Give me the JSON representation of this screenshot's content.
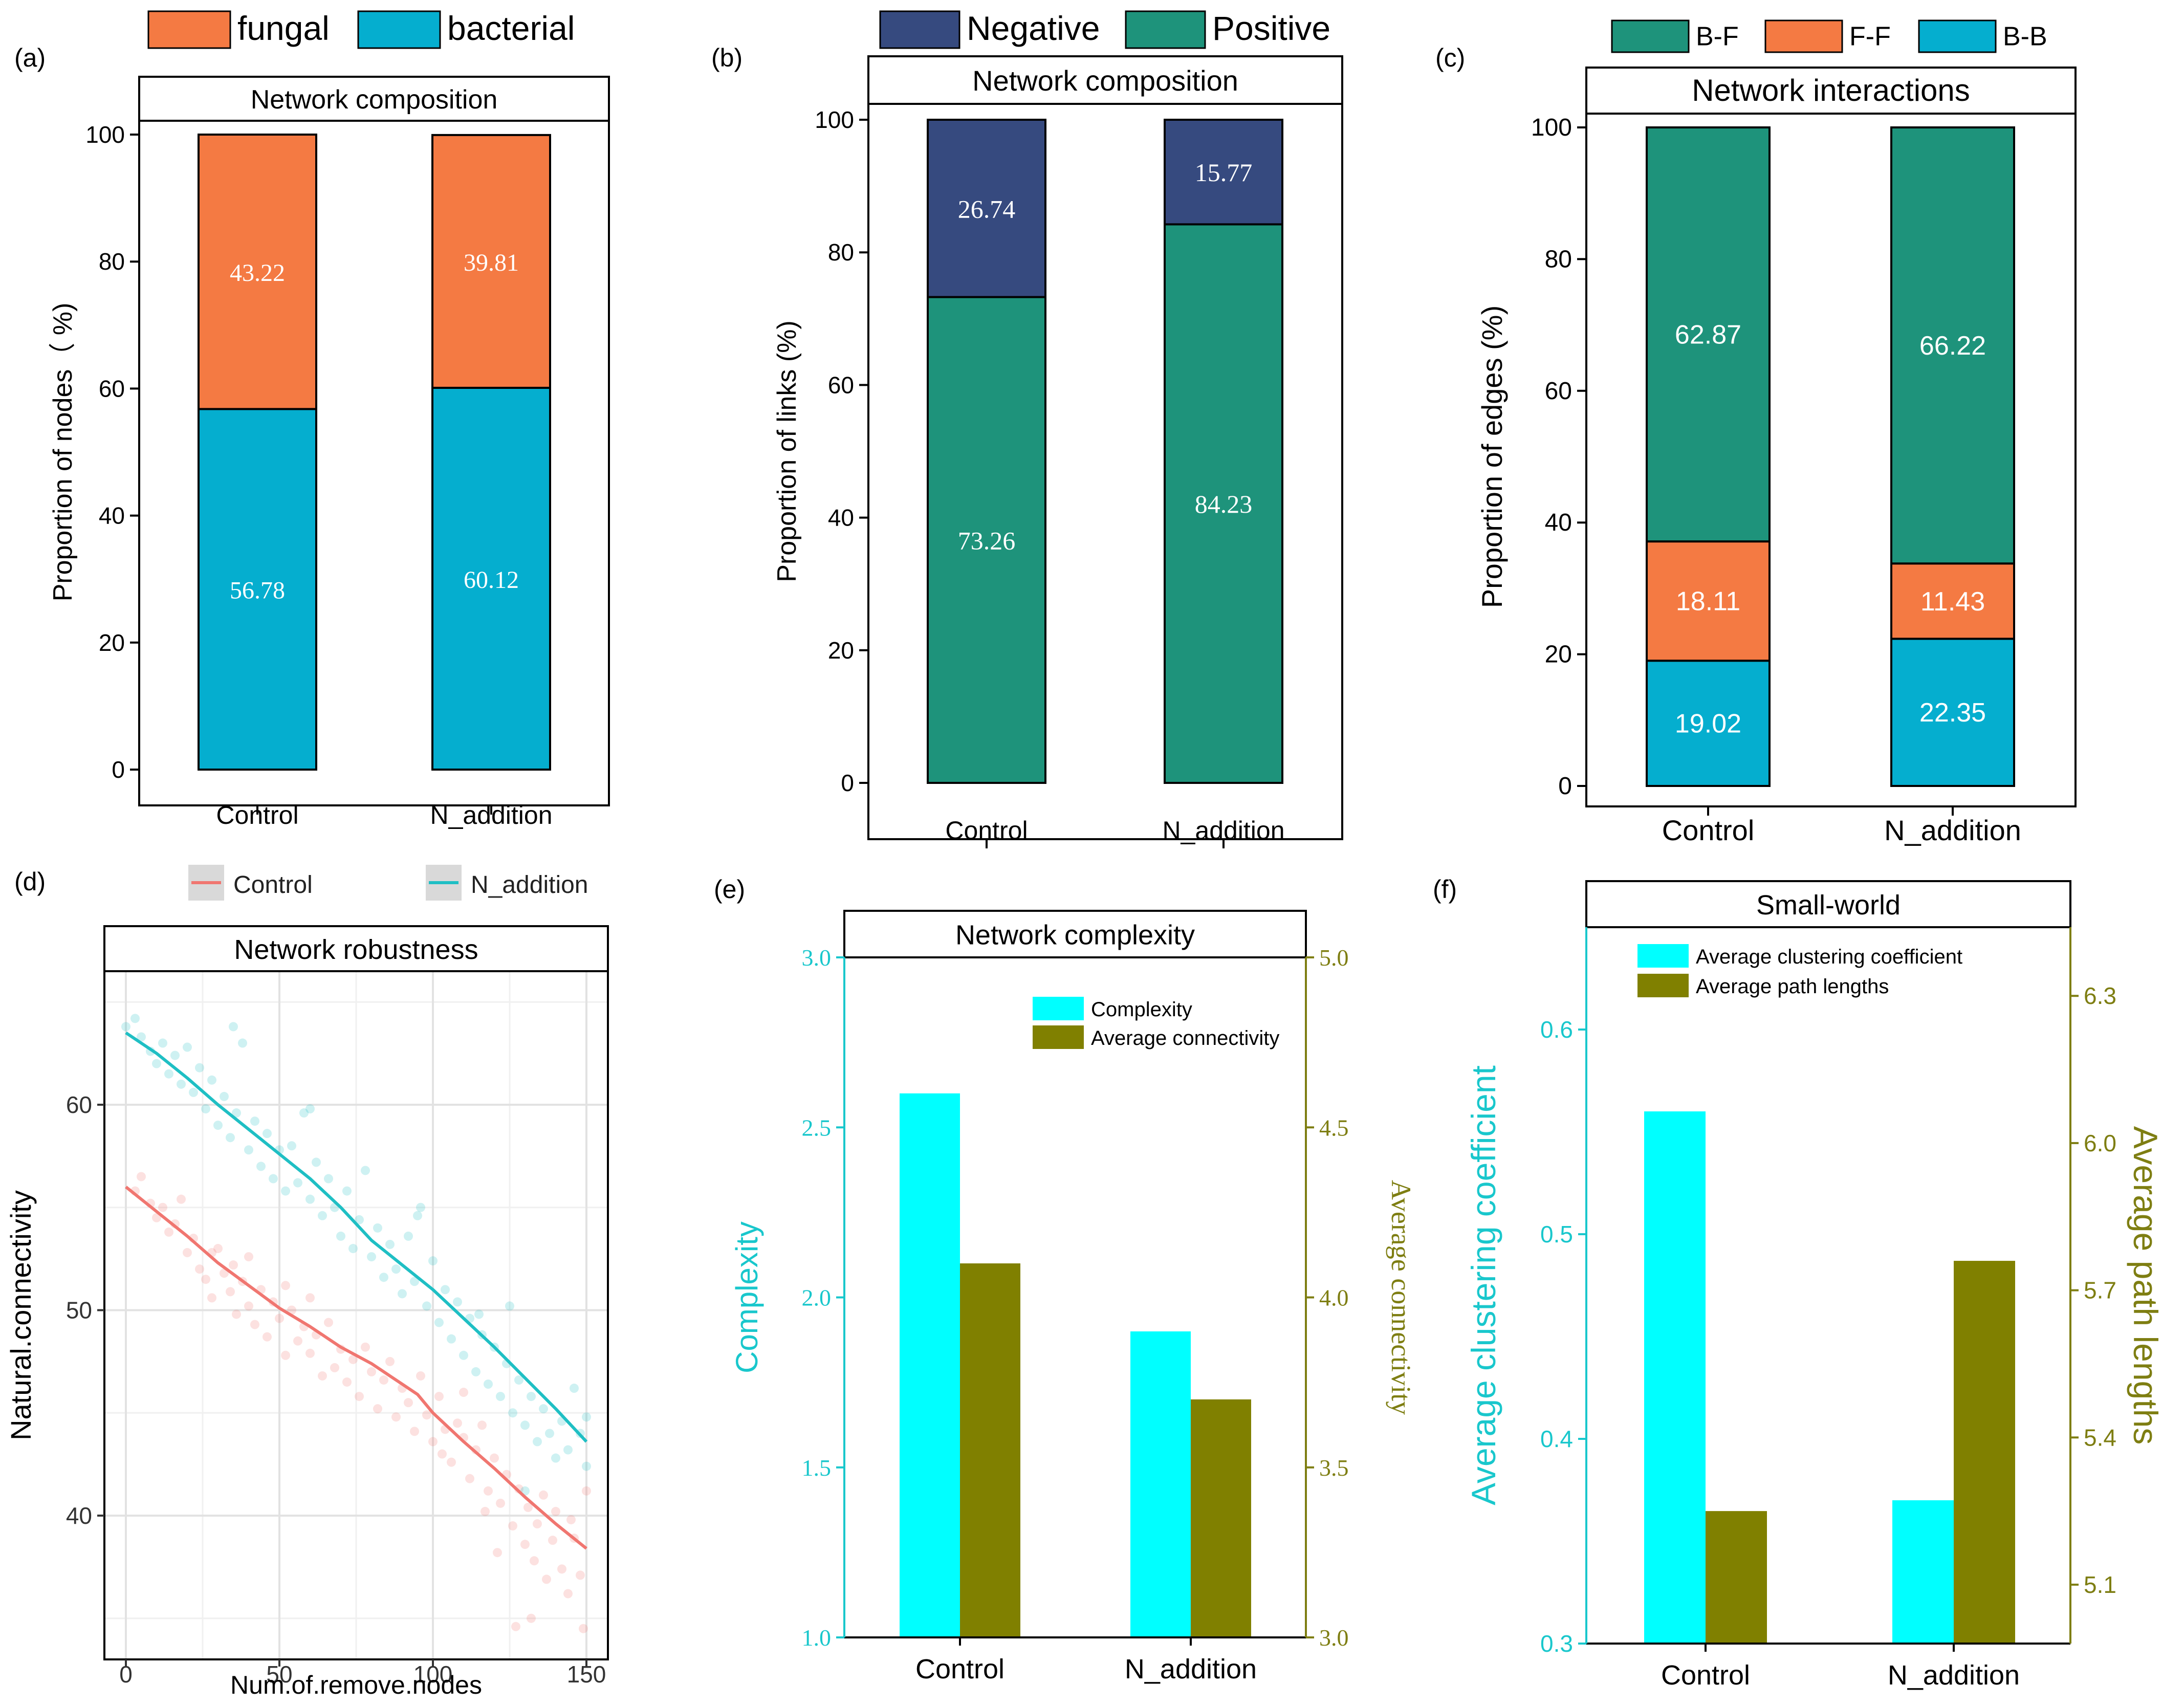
{
  "colors": {
    "fungal": "#F47A43",
    "bacterial": "#05AECF",
    "negative": "#364A7F",
    "positive": "#1E937B",
    "bf": "#1E937B",
    "ff": "#F47A43",
    "bb": "#05AECF",
    "control_line": "#F07670",
    "naddition_line": "#1FBFC4",
    "cyan": "#00FFFF",
    "olive": "#808000",
    "cyan_axis": "#19C7CC",
    "olive_axis": "#7E7E12"
  },
  "chart_data": [
    {
      "panel": "a",
      "panel_label": "(a)",
      "type": "bar",
      "title": "Network composition",
      "xlabel": "",
      "ylabel": "Proportion of nodes（ %)",
      "categories": [
        "Control",
        "N_addition"
      ],
      "ylim": [
        0,
        100
      ],
      "yticks": [
        "0",
        "20",
        "40",
        "60",
        "80",
        "100"
      ],
      "series": [
        {
          "name": "bacterial",
          "values": [
            56.78,
            60.12
          ],
          "labels": [
            "56.78",
            "60.12"
          ]
        },
        {
          "name": "fungal",
          "values": [
            43.22,
            39.81
          ],
          "labels": [
            "43.22",
            "39.81"
          ]
        }
      ],
      "legend": [
        {
          "key": "fungal",
          "label": "fungal"
        },
        {
          "key": "bacterial",
          "label": "bacterial"
        }
      ]
    },
    {
      "panel": "b",
      "panel_label": "(b)",
      "type": "bar",
      "title": "Network composition",
      "xlabel": "",
      "ylabel": "Proportion of links (%)",
      "categories": [
        "Control",
        "N_addition"
      ],
      "ylim": [
        0,
        100
      ],
      "yticks": [
        "0",
        "20",
        "40",
        "60",
        "80",
        "100"
      ],
      "series": [
        {
          "name": "Positive",
          "values": [
            73.26,
            84.23
          ],
          "labels": [
            "73.26",
            "84.23"
          ]
        },
        {
          "name": "Negative",
          "values": [
            26.74,
            15.77
          ],
          "labels": [
            "26.74",
            "15.77"
          ]
        }
      ],
      "legend": [
        {
          "key": "negative",
          "label": "Negative"
        },
        {
          "key": "positive",
          "label": "Positive"
        }
      ]
    },
    {
      "panel": "c",
      "panel_label": "(c)",
      "type": "bar",
      "title": "Network interactions",
      "xlabel": "",
      "ylabel": "Proportion of edges (%)",
      "categories": [
        "Control",
        "N_addition"
      ],
      "ylim": [
        0,
        100
      ],
      "yticks": [
        "0",
        "20",
        "40",
        "60",
        "80",
        "100"
      ],
      "series": [
        {
          "name": "B-B",
          "values": [
            19.02,
            22.35
          ],
          "labels": [
            "19.02",
            "22.35"
          ]
        },
        {
          "name": "F-F",
          "values": [
            18.11,
            11.43
          ],
          "labels": [
            "18.11",
            "11.43"
          ]
        },
        {
          "name": "B-F",
          "values": [
            62.87,
            66.22
          ],
          "labels": [
            "62.87",
            "66.22"
          ]
        }
      ],
      "legend": [
        {
          "key": "bf",
          "label": "B-F"
        },
        {
          "key": "ff",
          "label": "F-F"
        },
        {
          "key": "bb",
          "label": "B-B"
        }
      ]
    },
    {
      "panel": "d",
      "panel_label": "(d)",
      "type": "line",
      "title": "Network robustness",
      "xlabel": "Num.of.remove.nodes",
      "ylabel": "Natural.connectivity",
      "xlim": [
        -7,
        157
      ],
      "ylim": [
        33,
        66.5
      ],
      "xticks": [
        {
          "v": 0,
          "label": "0"
        },
        {
          "v": 50,
          "label": "50"
        },
        {
          "v": 100,
          "label": "100"
        },
        {
          "v": 150,
          "label": "150"
        }
      ],
      "yticks": [
        {
          "v": 40,
          "label": "40"
        },
        {
          "v": 50,
          "label": "50"
        },
        {
          "v": 60,
          "label": "60"
        }
      ],
      "legend": [
        {
          "key": "control_line",
          "label": "Control"
        },
        {
          "key": "naddition_line",
          "label": "N_addition"
        }
      ],
      "series": [
        {
          "name": "Control",
          "color_key": "control_line",
          "x": [
            0,
            10,
            20,
            30,
            40,
            50,
            60,
            70,
            80,
            90,
            95,
            100,
            110,
            120,
            130,
            140,
            150
          ],
          "y": [
            56.0,
            54.8,
            53.6,
            52.3,
            51.2,
            50.1,
            49.2,
            48.2,
            47.4,
            46.4,
            45.9,
            45.0,
            43.6,
            42.3,
            40.9,
            39.6,
            38.4
          ],
          "points": [
            [
              3,
              55.8
            ],
            [
              5,
              56.5
            ],
            [
              8,
              55.2
            ],
            [
              10,
              54.5
            ],
            [
              12,
              55.0
            ],
            [
              14,
              53.8
            ],
            [
              16,
              54.2
            ],
            [
              18,
              55.4
            ],
            [
              20,
              52.8
            ],
            [
              22,
              53.5
            ],
            [
              24,
              52.0
            ],
            [
              26,
              51.5
            ],
            [
              28,
              50.6
            ],
            [
              28,
              52.8
            ],
            [
              30,
              53.0
            ],
            [
              32,
              51.8
            ],
            [
              34,
              50.9
            ],
            [
              35,
              52.2
            ],
            [
              36,
              49.8
            ],
            [
              38,
              51.4
            ],
            [
              40,
              52.6
            ],
            [
              40,
              50.2
            ],
            [
              42,
              49.3
            ],
            [
              44,
              51.0
            ],
            [
              46,
              48.7
            ],
            [
              48,
              50.4
            ],
            [
              50,
              49.6
            ],
            [
              52,
              47.8
            ],
            [
              52,
              51.2
            ],
            [
              54,
              50.0
            ],
            [
              56,
              48.5
            ],
            [
              58,
              49.2
            ],
            [
              60,
              47.9
            ],
            [
              60,
              50.6
            ],
            [
              62,
              48.8
            ],
            [
              64,
              46.8
            ],
            [
              66,
              49.4
            ],
            [
              68,
              47.2
            ],
            [
              70,
              48.1
            ],
            [
              72,
              46.5
            ],
            [
              74,
              47.6
            ],
            [
              76,
              45.8
            ],
            [
              78,
              48.2
            ],
            [
              80,
              47.0
            ],
            [
              82,
              45.2
            ],
            [
              84,
              46.6
            ],
            [
              86,
              47.5
            ],
            [
              88,
              44.8
            ],
            [
              90,
              46.2
            ],
            [
              92,
              45.5
            ],
            [
              94,
              44.1
            ],
            [
              96,
              46.8
            ],
            [
              98,
              44.9
            ],
            [
              100,
              43.6
            ],
            [
              102,
              45.8
            ],
            [
              104,
              44.2
            ],
            [
              106,
              42.6
            ],
            [
              108,
              44.5
            ],
            [
              110,
              43.8
            ],
            [
              112,
              41.8
            ],
            [
              114,
              43.2
            ],
            [
              116,
              44.4
            ],
            [
              118,
              41.2
            ],
            [
              120,
              42.8
            ],
            [
              122,
              40.6
            ],
            [
              124,
              42.0
            ],
            [
              126,
              39.5
            ],
            [
              128,
              41.3
            ],
            [
              130,
              38.6
            ],
            [
              131,
              40.4
            ],
            [
              133,
              37.8
            ],
            [
              134,
              39.6
            ],
            [
              136,
              41.0
            ],
            [
              137,
              36.9
            ],
            [
              139,
              38.8
            ],
            [
              140,
              40.2
            ],
            [
              142,
              37.4
            ],
            [
              144,
              36.2
            ],
            [
              146,
              38.9
            ],
            [
              148,
              37.1
            ],
            [
              149,
              34.5
            ],
            [
              132,
              35.0
            ],
            [
              127,
              34.6
            ],
            [
              145,
              39.8
            ],
            [
              150,
              41.2
            ],
            [
              121,
              38.2
            ],
            [
              117,
              40.2
            ],
            [
              110,
              46.0
            ],
            [
              103,
              43.0
            ]
          ]
        },
        {
          "name": "N_addition",
          "color_key": "naddition_line",
          "x": [
            0,
            10,
            20,
            30,
            40,
            50,
            60,
            70,
            75,
            80,
            90,
            100,
            110,
            120,
            130,
            140,
            150
          ],
          "y": [
            63.5,
            62.5,
            61.3,
            60.0,
            58.8,
            57.6,
            56.4,
            55.0,
            54.2,
            53.4,
            52.2,
            51.0,
            49.6,
            48.2,
            46.7,
            45.2,
            43.6
          ],
          "points": [
            [
              0,
              63.8
            ],
            [
              3,
              64.2
            ],
            [
              5,
              63.3
            ],
            [
              8,
              62.6
            ],
            [
              10,
              62.0
            ],
            [
              12,
              63.0
            ],
            [
              14,
              61.5
            ],
            [
              16,
              62.4
            ],
            [
              18,
              61.0
            ],
            [
              20,
              62.8
            ],
            [
              22,
              60.6
            ],
            [
              24,
              61.8
            ],
            [
              26,
              59.8
            ],
            [
              28,
              61.2
            ],
            [
              30,
              59.0
            ],
            [
              32,
              60.4
            ],
            [
              34,
              58.4
            ],
            [
              36,
              59.6
            ],
            [
              38,
              63.0
            ],
            [
              40,
              57.8
            ],
            [
              42,
              59.2
            ],
            [
              44,
              57.0
            ],
            [
              46,
              58.6
            ],
            [
              48,
              56.4
            ],
            [
              50,
              57.8
            ],
            [
              52,
              55.8
            ],
            [
              54,
              58.0
            ],
            [
              56,
              56.2
            ],
            [
              58,
              59.6
            ],
            [
              60,
              55.4
            ],
            [
              62,
              57.2
            ],
            [
              64,
              54.6
            ],
            [
              66,
              56.4
            ],
            [
              68,
              55.0
            ],
            [
              70,
              53.6
            ],
            [
              72,
              55.8
            ],
            [
              74,
              53.0
            ],
            [
              76,
              54.4
            ],
            [
              78,
              56.8
            ],
            [
              80,
              52.6
            ],
            [
              82,
              54.0
            ],
            [
              84,
              51.6
            ],
            [
              86,
              53.2
            ],
            [
              88,
              52.0
            ],
            [
              90,
              50.8
            ],
            [
              92,
              53.6
            ],
            [
              94,
              51.4
            ],
            [
              96,
              55.0
            ],
            [
              98,
              50.2
            ],
            [
              100,
              52.4
            ],
            [
              102,
              49.4
            ],
            [
              104,
              51.0
            ],
            [
              106,
              48.6
            ],
            [
              108,
              50.4
            ],
            [
              110,
              47.8
            ],
            [
              112,
              49.6
            ],
            [
              114,
              47.0
            ],
            [
              116,
              48.8
            ],
            [
              118,
              46.4
            ],
            [
              120,
              48.2
            ],
            [
              122,
              45.8
            ],
            [
              124,
              47.4
            ],
            [
              126,
              45.0
            ],
            [
              128,
              46.6
            ],
            [
              130,
              44.4
            ],
            [
              132,
              45.8
            ],
            [
              134,
              43.6
            ],
            [
              136,
              45.2
            ],
            [
              138,
              44.0
            ],
            [
              140,
              42.8
            ],
            [
              142,
              44.6
            ],
            [
              144,
              43.2
            ],
            [
              146,
              46.2
            ],
            [
              148,
              44.0
            ],
            [
              150,
              42.4
            ],
            [
              150,
              44.8
            ],
            [
              60,
              59.8
            ],
            [
              35,
              63.8
            ],
            [
              95,
              54.6
            ],
            [
              115,
              49.8
            ],
            [
              125,
              50.2
            ],
            [
              130,
              41.2
            ]
          ]
        }
      ]
    },
    {
      "panel": "e",
      "panel_label": "(e)",
      "type": "bar",
      "title": "Network complexity",
      "xlabel": "",
      "ylabel": "Complexity",
      "ylabel_right": "Average connectivity",
      "categories": [
        "Control",
        "N_addition"
      ],
      "ylim": [
        1.0,
        3.0
      ],
      "ylim_right": [
        3.0,
        5.0
      ],
      "yticks": [
        "1.0",
        "1.5",
        "2.0",
        "2.5",
        "3.0"
      ],
      "yticks_right": [
        "3.0",
        "3.5",
        "4.0",
        "4.5",
        "5.0"
      ],
      "series": [
        {
          "name": "Complexity",
          "axis": "left",
          "color_key": "cyan",
          "values": [
            2.6,
            1.9
          ]
        },
        {
          "name": "Average connectivity",
          "axis": "right",
          "color_key": "olive",
          "values": [
            4.1,
            3.7
          ]
        }
      ],
      "legend": [
        {
          "key": "cyan",
          "label": "Complexity"
        },
        {
          "key": "olive",
          "label": "Average connectivity"
        }
      ]
    },
    {
      "panel": "f",
      "panel_label": "(f)",
      "type": "bar",
      "title": "Small-world",
      "xlabel": "",
      "ylabel": "Average clustering coefficient",
      "ylabel_right": "Average path lengths",
      "categories": [
        "Control",
        "N_addition"
      ],
      "ylim": [
        0.3,
        0.65
      ],
      "ylim_right": [
        4.98,
        6.44
      ],
      "yticks": [
        "0.3",
        "0.4",
        "0.5",
        "0.6"
      ],
      "yticks_right": [
        "5.1",
        "5.4",
        "5.7",
        "6.0",
        "6.3"
      ],
      "series": [
        {
          "name": "Average clustering coefficient",
          "axis": "left",
          "color_key": "cyan",
          "values": [
            0.56,
            0.37
          ]
        },
        {
          "name": "Average path lengths",
          "axis": "right",
          "color_key": "olive",
          "values": [
            5.25,
            5.76
          ]
        }
      ],
      "legend": [
        {
          "key": "cyan",
          "label": "Average clustering coefficient"
        },
        {
          "key": "olive",
          "label": "Average path lengths"
        }
      ]
    }
  ]
}
